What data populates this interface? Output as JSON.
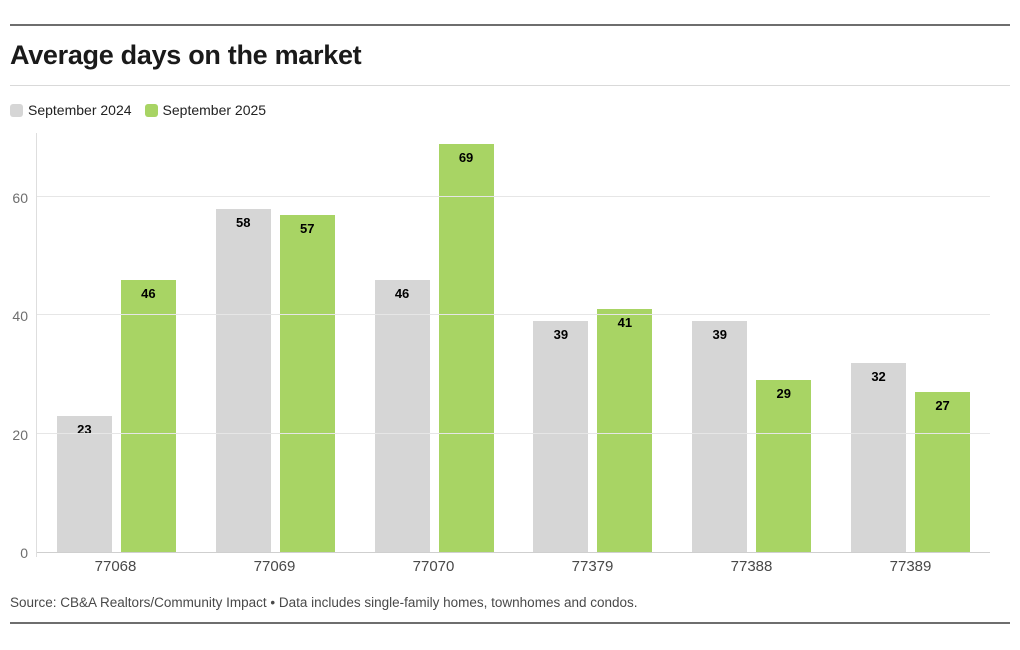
{
  "header": {
    "title": "Average days on the market"
  },
  "legend": {
    "items": [
      {
        "label": "September 2024",
        "color": "#d6d6d6"
      },
      {
        "label": "September 2025",
        "color": "#a8d464"
      }
    ]
  },
  "footer": {
    "source": "Source: CB&A Realtors/Community Impact • Data includes single-family homes, townhomes and condos."
  },
  "chart_data": {
    "type": "bar",
    "title": "Average days on the market",
    "categories": [
      "77068",
      "77069",
      "77070",
      "77379",
      "77388",
      "77389"
    ],
    "series": [
      {
        "name": "September 2024",
        "color": "#d6d6d6",
        "values": [
          23,
          58,
          46,
          39,
          39,
          32
        ]
      },
      {
        "name": "September 2025",
        "color": "#a8d464",
        "values": [
          46,
          57,
          69,
          41,
          29,
          27
        ]
      }
    ],
    "xlabel": "",
    "ylabel": "",
    "ylim": [
      0,
      71
    ],
    "yticks": [
      0,
      20,
      40,
      60
    ],
    "grid": true,
    "bar_value_labels": true,
    "legend_position": "top-left"
  }
}
